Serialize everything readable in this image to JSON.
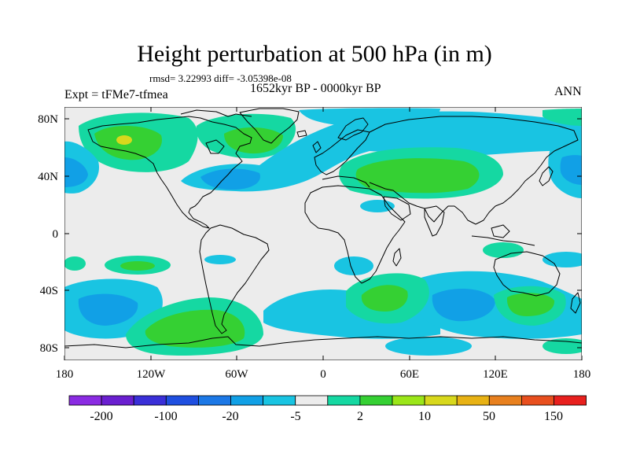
{
  "header": {
    "title": "Height perturbation at 500 hPa (in m)",
    "stats": "rmsd= 3.22993 diff= -3.05398e-08",
    "experiment": "Expt = tFMe7-tfmea",
    "period": "1652kyr BP - 0000kyr BP",
    "season": "ANN"
  },
  "map": {
    "lat_ticks": [
      "80N",
      "40N",
      "0",
      "40S",
      "80S"
    ],
    "lon_ticks": [
      "180",
      "120W",
      "60W",
      "0",
      "60E",
      "120E",
      "180"
    ],
    "lon_range": [
      -180,
      180
    ],
    "lat_range": [
      -90,
      90
    ]
  },
  "colorbar": {
    "colors": [
      "#8a2be2",
      "#6a1fd0",
      "#3a2fd8",
      "#1f4fe0",
      "#1c78e6",
      "#11a0e6",
      "#19c4e2",
      "#ececec",
      "#15d8a2",
      "#35d033",
      "#9be619",
      "#d8d81c",
      "#e8b214",
      "#e8801e",
      "#e84f1e",
      "#e8201e"
    ],
    "labels": [
      "-200",
      "-100",
      "-20",
      "-5",
      "2",
      "10",
      "50",
      "150"
    ]
  },
  "chart_data": {
    "type": "heatmap",
    "title": "Height perturbation at 500 hPa (in m)",
    "variable": "Height perturbation at 500 hPa",
    "units": "m",
    "rmsd": 3.22993,
    "diff": -3.05398e-08,
    "experiment": "tFMe7-tfmea",
    "period": "1652kyr BP - 0000kyr BP",
    "season": "ANN",
    "x_ticks": [
      "180",
      "120W",
      "60W",
      "0",
      "60E",
      "120E",
      "180"
    ],
    "y_ticks": [
      "80N",
      "40N",
      "0",
      "40S",
      "80S"
    ],
    "colorbar_labels": [
      "-200",
      "-100",
      "-20",
      "-5",
      "2",
      "10",
      "50",
      "150"
    ],
    "anomalies": [
      {
        "sign": "positive",
        "lon": -140,
        "lat": 60,
        "peak": 10
      },
      {
        "sign": "positive",
        "lon": -100,
        "lat": 65,
        "peak": 5
      },
      {
        "sign": "positive",
        "lon": -60,
        "lat": 78,
        "peak": 5
      },
      {
        "sign": "positive",
        "lon": 60,
        "lat": 45,
        "peak": 10
      },
      {
        "sign": "positive",
        "lon": 170,
        "lat": 75,
        "peak": 5
      },
      {
        "sign": "positive",
        "lon": -140,
        "lat": -20,
        "peak": 5
      },
      {
        "sign": "positive",
        "lon": -100,
        "lat": -65,
        "peak": 10
      },
      {
        "sign": "positive",
        "lon": 45,
        "lat": -45,
        "peak": 10
      },
      {
        "sign": "positive",
        "lon": 145,
        "lat": -50,
        "peak": 10
      },
      {
        "sign": "negative",
        "lon": -165,
        "lat": 45,
        "peak": -20
      },
      {
        "sign": "negative",
        "lon": -110,
        "lat": 50,
        "peak": -5
      },
      {
        "sign": "negative",
        "lon": -40,
        "lat": 40,
        "peak": -20
      },
      {
        "sign": "negative",
        "lon": 10,
        "lat": 82,
        "peak": -5
      },
      {
        "sign": "negative",
        "lon": 120,
        "lat": 60,
        "peak": -5
      },
      {
        "sign": "negative",
        "lon": 175,
        "lat": 45,
        "peak": -20
      },
      {
        "sign": "negative",
        "lon": -160,
        "lat": -55,
        "peak": -20
      },
      {
        "sign": "negative",
        "lon": 95,
        "lat": -50,
        "peak": -20
      },
      {
        "sign": "negative",
        "lon": 0,
        "lat": -68,
        "peak": -5
      }
    ]
  }
}
